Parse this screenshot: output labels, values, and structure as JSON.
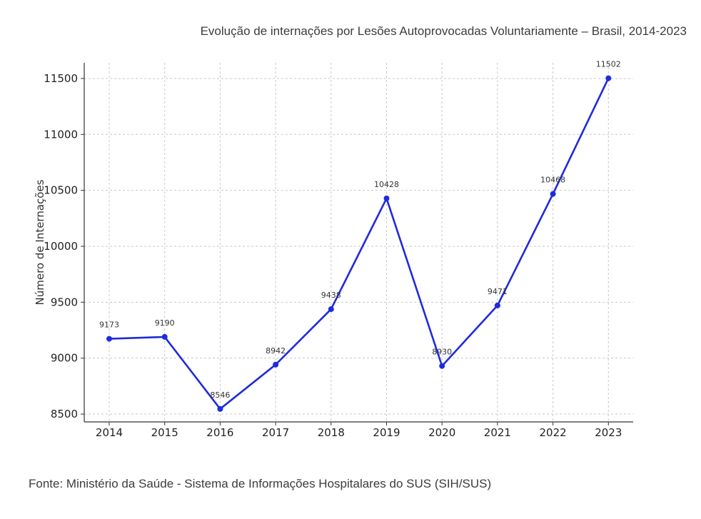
{
  "page": {
    "title": "Evolução de internações por Lesões Autoprovocadas Voluntariamente – Brasil, 2014-2023",
    "source": "Fonte: Ministério da Saúde - Sistema de Informações Hospitalares do SUS (SIH/SUS)"
  },
  "chart_data": {
    "type": "line",
    "x": [
      "2014",
      "2015",
      "2016",
      "2017",
      "2018",
      "2019",
      "2020",
      "2021",
      "2022",
      "2023"
    ],
    "series": [
      {
        "values": [
          9173,
          9190,
          8546,
          8942,
          9438,
          10428,
          8930,
          9471,
          10468,
          11502
        ],
        "color": "#1f2bdc"
      }
    ],
    "xlabel": "",
    "ylabel": "Número de Internações",
    "yticks": [
      8500,
      9000,
      9500,
      10000,
      10500,
      11000,
      11500
    ],
    "ylim": [
      8430,
      11640
    ],
    "grid": true,
    "legend": "none"
  }
}
